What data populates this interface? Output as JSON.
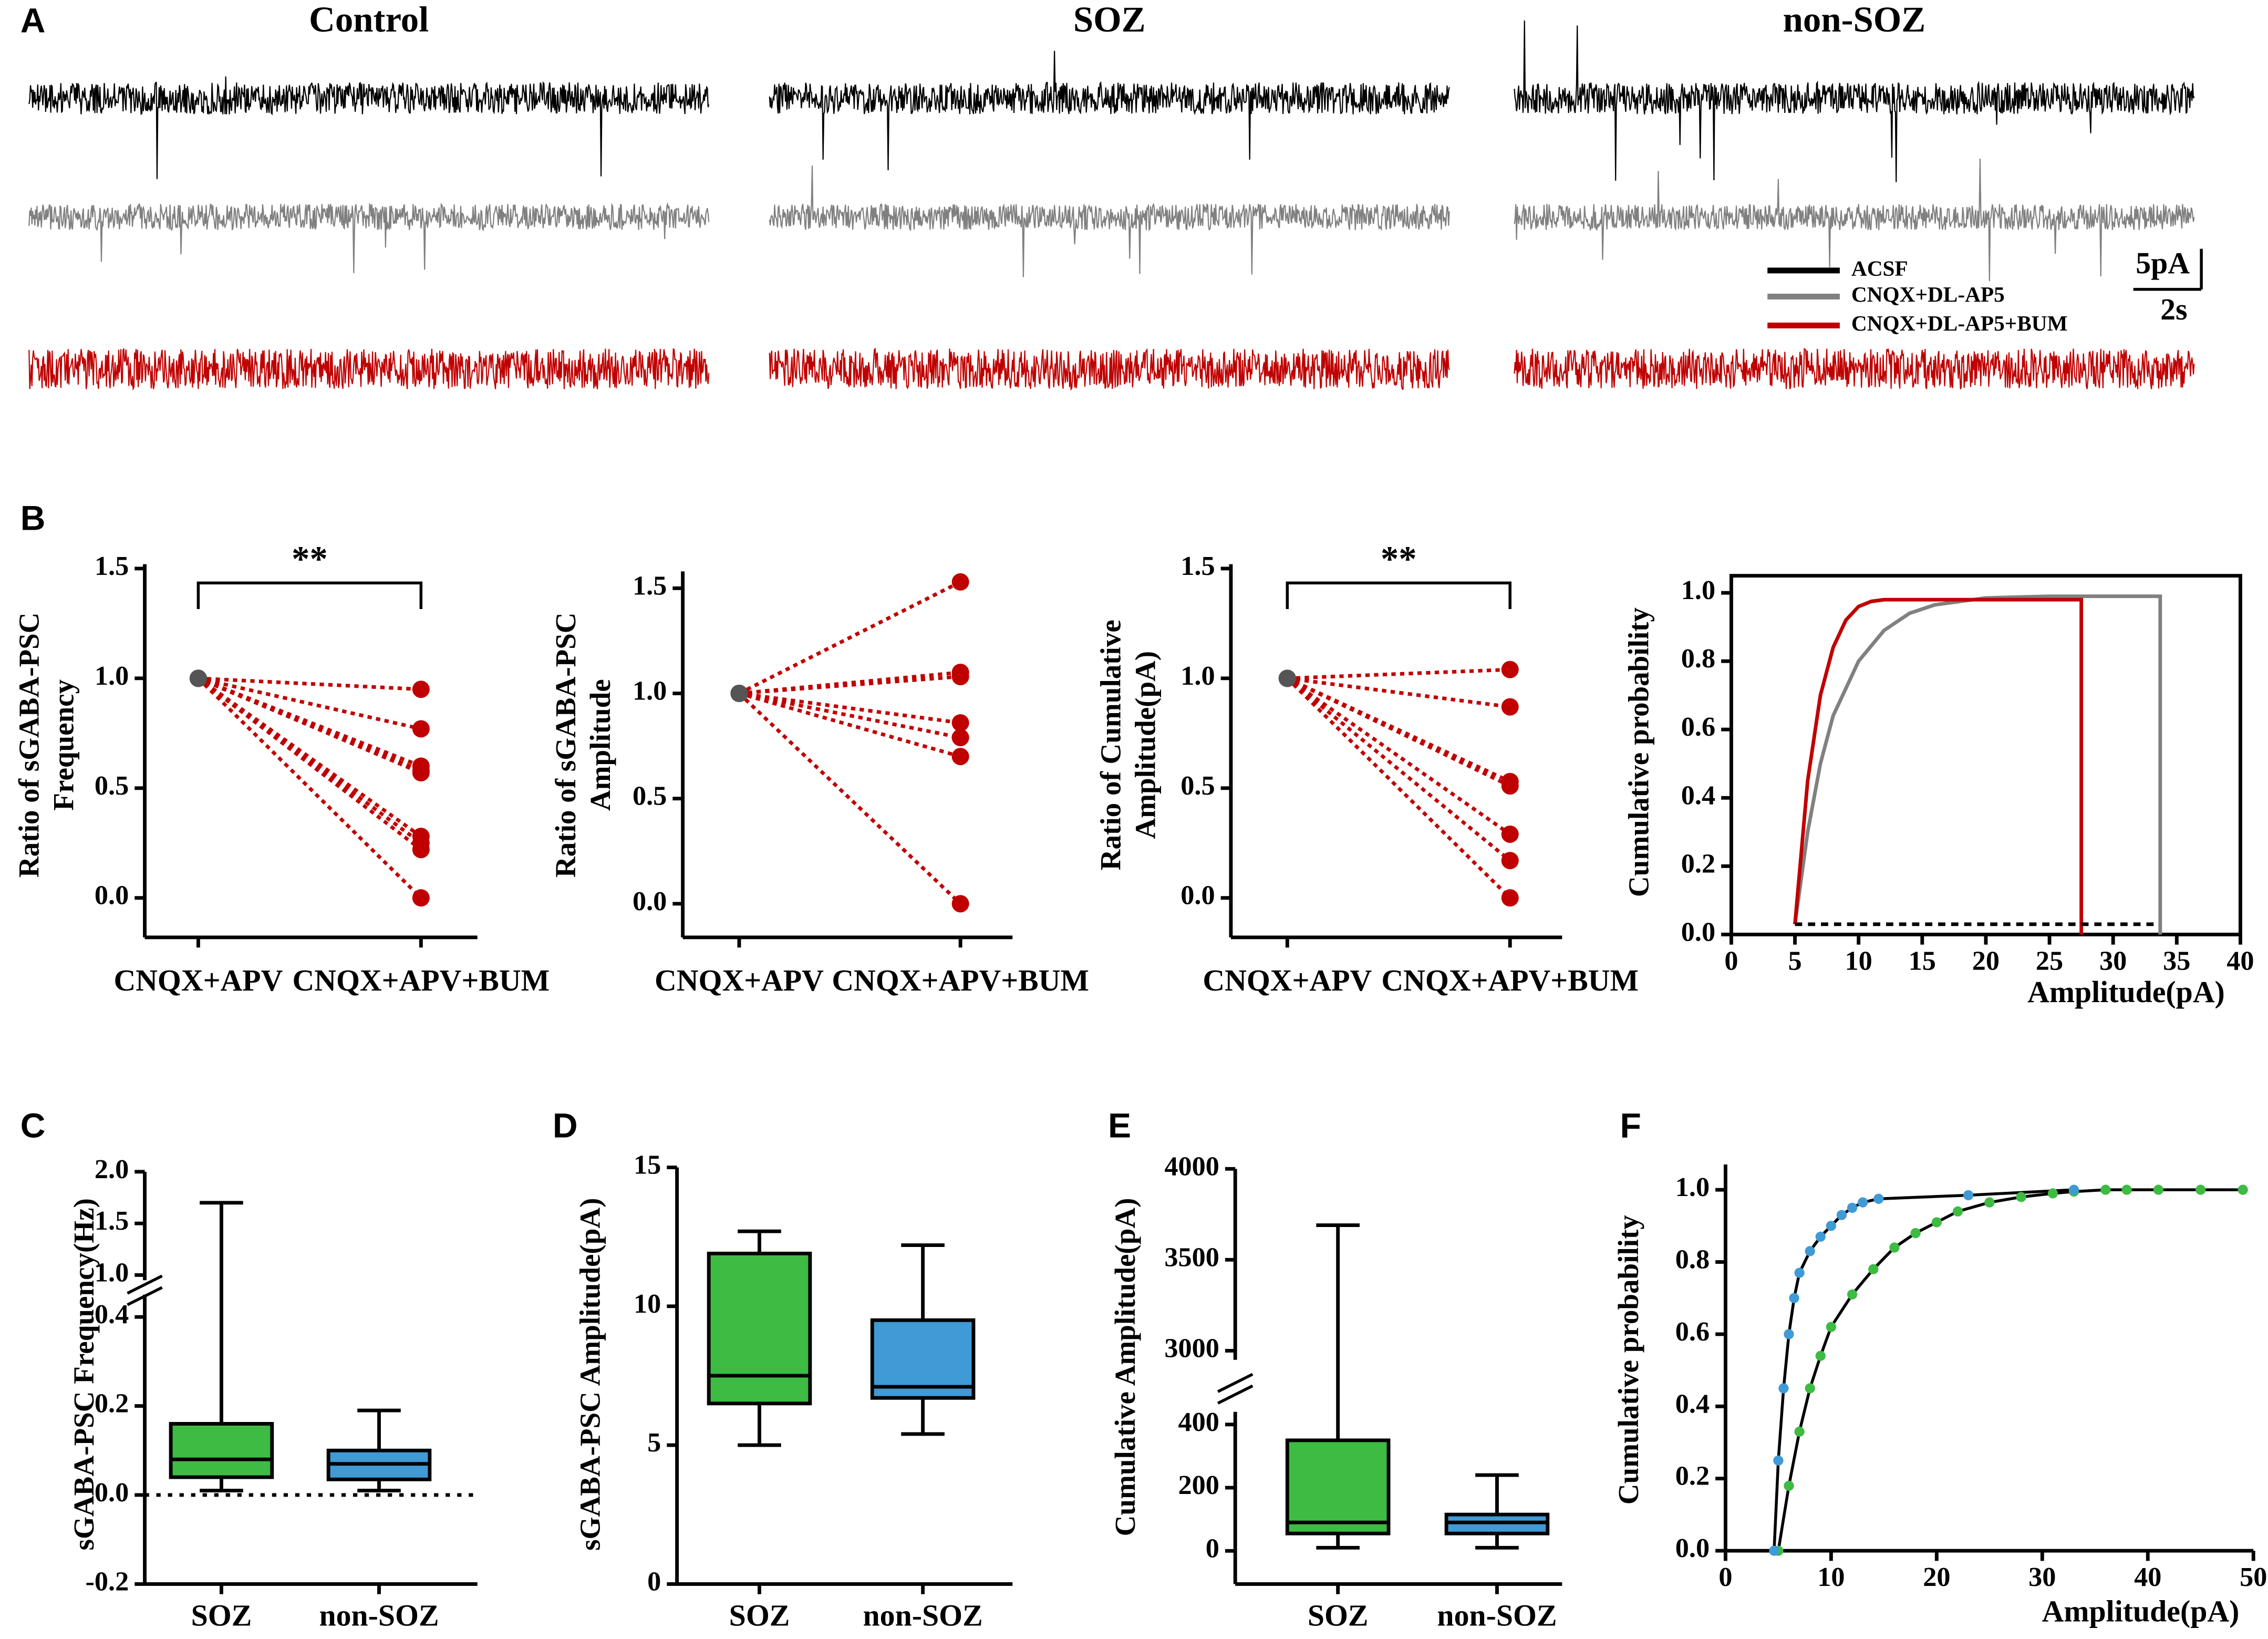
{
  "chart_data": [
    {
      "type": "traces",
      "label": "A",
      "conditions": [
        "Control",
        "SOZ",
        "non-SOZ"
      ],
      "legend": [
        {
          "name": "ACSF",
          "color": "#000000"
        },
        {
          "name": "CNQX+DL-AP5",
          "color": "#808080"
        },
        {
          "name": "CNQX+DL-AP5+BUM",
          "color": "#c00000"
        }
      ],
      "scale_labels": [
        "5pA",
        "2s"
      ]
    },
    {
      "type": "paired",
      "label": "B",
      "categories": [
        "CNQX+APV",
        "CNQX+APV+BUM"
      ],
      "ylabel": [
        "Ratio of sGABA-PSC",
        "Frequency"
      ],
      "ylim": [
        -0.18,
        1.52
      ],
      "yticks": [
        {
          "value": 0,
          "label": "0.0"
        },
        0.5,
        {
          "value": 1,
          "label": "1.0"
        },
        1.5
      ],
      "annotation": "**",
      "start_color": "#555555",
      "color": "#c00000",
      "pairs": [
        [
          1,
          0.95
        ],
        [
          1,
          0.77
        ],
        [
          1,
          0.6
        ],
        [
          1,
          0.58
        ],
        [
          1,
          0.57
        ],
        [
          1,
          0.28
        ],
        [
          1,
          0.25
        ],
        [
          1,
          0.22
        ],
        [
          1,
          0
        ]
      ]
    },
    {
      "type": "paired",
      "categories": [
        "CNQX+APV",
        "CNQX+APV+BUM"
      ],
      "ylabel": [
        "Ratio of sGABA-PSC",
        "Amplitude"
      ],
      "ylim": [
        -0.16,
        1.58
      ],
      "yticks": [
        {
          "value": 0,
          "label": "0.0"
        },
        0.5,
        {
          "value": 1,
          "label": "1.0"
        },
        1.5
      ],
      "start_color": "#555555",
      "color": "#c00000",
      "pairs": [
        [
          1,
          1.53
        ],
        [
          1,
          1.1
        ],
        [
          1,
          1.08
        ],
        [
          1,
          0.86
        ],
        [
          1,
          0.79
        ],
        [
          1,
          0.7
        ],
        [
          1,
          0
        ]
      ]
    },
    {
      "type": "paired",
      "categories": [
        "CNQX+APV",
        "CNQX+APV+BUM"
      ],
      "ylabel": [
        "Ratio of Cumulative",
        "Amplitude(pA)"
      ],
      "ylim": [
        -0.18,
        1.52
      ],
      "yticks": [
        {
          "value": 0,
          "label": "0.0"
        },
        0.5,
        {
          "value": 1,
          "label": "1.0"
        },
        1.5
      ],
      "annotation": "**",
      "start_color": "#555555",
      "color": "#c00000",
      "pairs": [
        [
          1,
          1.04
        ],
        [
          1,
          0.87
        ],
        [
          1,
          0.53
        ],
        [
          1,
          0.51
        ],
        [
          1,
          0.29
        ],
        [
          1,
          0.17
        ],
        [
          1,
          0
        ]
      ]
    },
    {
      "type": "cumulative",
      "xlabel": "Amplitude(pA)",
      "ylabel": "Cumulative probability",
      "xlim": [
        0,
        40
      ],
      "ylim": [
        0,
        1.05
      ],
      "xticks": [
        0,
        5,
        10,
        15,
        20,
        25,
        30,
        35,
        40
      ],
      "yticks": [
        {
          "value": 0,
          "label": "0.0"
        },
        0.2,
        0.4,
        0.6,
        0.8,
        {
          "value": 1,
          "label": "1.0"
        }
      ],
      "series": [
        {
          "color": "#808080",
          "x": [
            5,
            6,
            7,
            8,
            10,
            12,
            14,
            16,
            20,
            25,
            33.7,
            33.7
          ],
          "values": [
            0.03,
            0.3,
            0.5,
            0.64,
            0.8,
            0.89,
            0.94,
            0.965,
            0.985,
            0.99,
            0.99,
            0
          ]
        },
        {
          "color": "#c00000",
          "x": [
            5,
            6,
            7,
            8,
            9,
            10,
            11,
            12,
            14,
            27.5,
            27.5
          ],
          "values": [
            0.03,
            0.45,
            0.7,
            0.84,
            0.92,
            0.96,
            0.975,
            0.98,
            0.98,
            0.98,
            0
          ]
        },
        {
          "color": "#000000",
          "dashed": true,
          "x": [
            5,
            33.5
          ],
          "values": [
            0.03,
            0.03
          ]
        }
      ]
    },
    {
      "type": "box",
      "label": "C",
      "categories": [
        "SOZ",
        "non-SOZ"
      ],
      "ylabel": "sGABA-PSC Frequency(Hz)",
      "zero_line": true,
      "segments": [
        {
          "ylim": [
            -0.2,
            0.45
          ],
          "yticks": [
            -0.2,
            {
              "value": 0,
              "label": "0.0"
            },
            0.2,
            0.4
          ]
        },
        {
          "ylim": [
            0.95,
            2.0
          ],
          "yticks": [
            {
              "value": 1,
              "label": "1.0"
            },
            1.5,
            {
              "value": 2,
              "label": "2.0"
            }
          ]
        }
      ],
      "boxes": [
        {
          "color": "#3dbb43",
          "min": 0.01,
          "q1": 0.04,
          "median": 0.08,
          "q3": 0.16,
          "max": 1.7
        },
        {
          "color": "#3f9ad6",
          "min": 0.01,
          "q1": 0.035,
          "median": 0.07,
          "q3": 0.1,
          "max": 0.19
        }
      ]
    },
    {
      "type": "box",
      "label": "D",
      "categories": [
        "SOZ",
        "non-SOZ"
      ],
      "ylabel": "sGABA-PSC Amplitude(pA)",
      "segments": [
        {
          "ylim": [
            0,
            15
          ],
          "yticks": [
            0,
            5,
            10,
            15
          ]
        }
      ],
      "boxes": [
        {
          "color": "#3dbb43",
          "min": 5.0,
          "q1": 6.5,
          "median": 7.5,
          "q3": 11.9,
          "max": 12.7
        },
        {
          "color": "#3f9ad6",
          "min": 5.4,
          "q1": 6.7,
          "median": 7.1,
          "q3": 9.5,
          "max": 12.2
        }
      ]
    },
    {
      "type": "box",
      "label": "E",
      "categories": [
        "SOZ",
        "non-SOZ"
      ],
      "ylabel": "Cumulative Amplitude(pA)",
      "segments": [
        {
          "ylim": [
            -105,
            440
          ],
          "yticks": [
            0,
            200,
            400
          ]
        },
        {
          "ylim": [
            2950,
            4000
          ],
          "yticks": [
            3000,
            3500,
            4000
          ]
        }
      ],
      "boxes": [
        {
          "color": "#3dbb43",
          "min": 10,
          "q1": 55,
          "median": 90,
          "q3": 350,
          "max": 3690
        },
        {
          "color": "#3f9ad6",
          "min": 10,
          "q1": 55,
          "median": 90,
          "q3": 115,
          "max": 240
        }
      ]
    },
    {
      "type": "scatter",
      "label": "F",
      "xlabel": "Amplitude(pA)",
      "ylabel": "Cumulative probability",
      "line_color": "#000000",
      "xlim": [
        0,
        50
      ],
      "ylim": [
        0,
        1.07
      ],
      "xticks": [
        0,
        10,
        20,
        30,
        40,
        50
      ],
      "yticks": [
        {
          "value": 0,
          "label": "0.0"
        },
        0.2,
        0.4,
        0.6,
        0.8,
        {
          "value": 1,
          "label": "1.0"
        }
      ],
      "series": [
        {
          "color": "#3dbb43",
          "x": [
            5,
            6,
            7,
            8,
            9,
            10,
            12,
            14,
            16,
            18,
            20,
            22,
            25,
            28,
            31,
            33,
            36,
            38,
            41,
            45,
            49
          ],
          "values": [
            0,
            0.18,
            0.33,
            0.45,
            0.54,
            0.62,
            0.71,
            0.78,
            0.84,
            0.88,
            0.91,
            0.94,
            0.965,
            0.98,
            0.99,
            0.995,
            1,
            1,
            1,
            1,
            1
          ]
        },
        {
          "color": "#3f9ad6",
          "x": [
            4.6,
            5,
            5.5,
            6,
            6.5,
            7,
            8,
            9,
            10,
            11,
            12,
            13,
            14.5,
            23,
            33
          ],
          "values": [
            0,
            0.25,
            0.45,
            0.6,
            0.7,
            0.77,
            0.83,
            0.87,
            0.9,
            0.93,
            0.95,
            0.965,
            0.975,
            0.985,
            1
          ]
        }
      ]
    }
  ]
}
